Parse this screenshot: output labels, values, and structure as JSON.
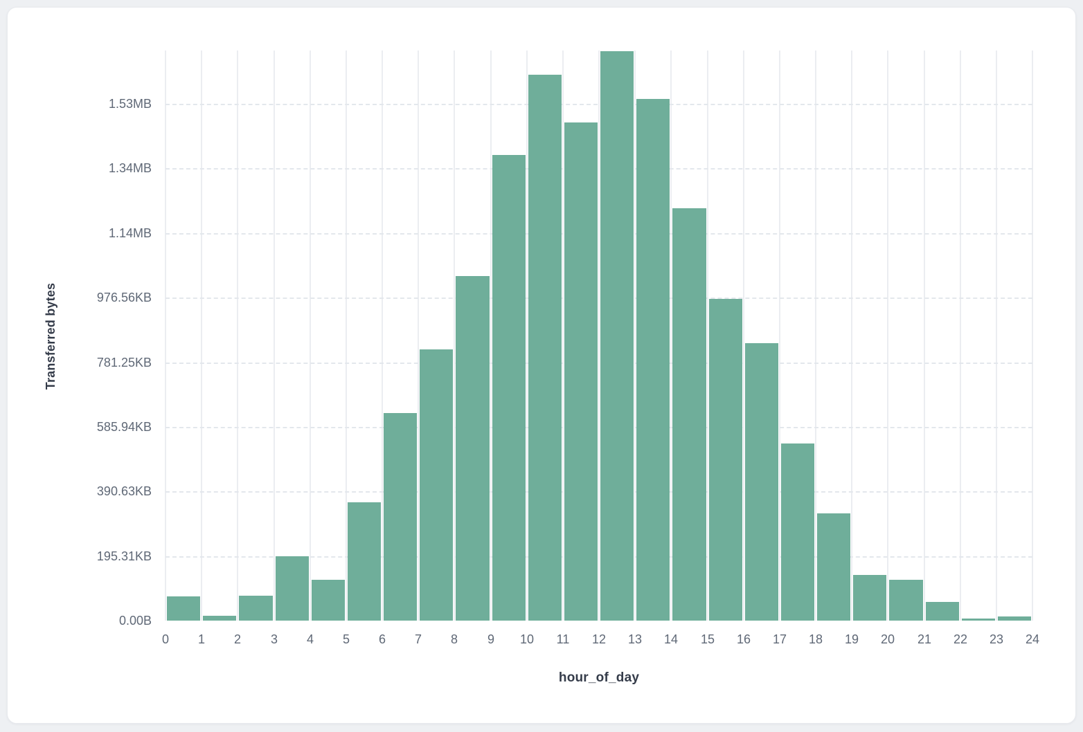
{
  "chart_data": {
    "type": "bar",
    "subtype": "histogram",
    "title": "",
    "xlabel": "hour_of_day",
    "ylabel": "Transferred bytes",
    "categories": [
      0,
      1,
      2,
      3,
      4,
      5,
      6,
      7,
      8,
      9,
      10,
      11,
      12,
      13,
      14,
      15,
      16,
      17,
      18,
      19,
      20,
      21,
      22,
      23
    ],
    "values_bytes": [
      74000,
      16000,
      78000,
      199000,
      126000,
      366000,
      642000,
      839000,
      1067000,
      1442000,
      1690000,
      1542000,
      1763000,
      1615000,
      1277000,
      997000,
      858000,
      548000,
      332000,
      141000,
      126000,
      58000,
      6400,
      12800
    ],
    "ylim": [
      0,
      1765000
    ],
    "y_ticks": [
      {
        "label": "0.00B",
        "bytes": 0
      },
      {
        "label": "195.31KB",
        "bytes": 200000
      },
      {
        "label": "390.63KB",
        "bytes": 400000
      },
      {
        "label": "585.94KB",
        "bytes": 600000
      },
      {
        "label": "781.25KB",
        "bytes": 800000
      },
      {
        "label": "976.56KB",
        "bytes": 1000000
      },
      {
        "label": "1.14MB",
        "bytes": 1200000
      },
      {
        "label": "1.34MB",
        "bytes": 1400000
      },
      {
        "label": "1.53MB",
        "bytes": 1600000
      }
    ],
    "x_ticks": [
      "0",
      "1",
      "2",
      "3",
      "4",
      "5",
      "6",
      "7",
      "8",
      "9",
      "10",
      "11",
      "12",
      "13",
      "14",
      "15",
      "16",
      "17",
      "18",
      "19",
      "20",
      "21",
      "22",
      "23",
      "24"
    ],
    "grid": {
      "vertical": "solid",
      "horizontal": "dashed"
    },
    "legend": "none",
    "colors": {
      "bar": "#6fae9a",
      "grid_vertical": "#ebedf1",
      "grid_horizontal": "#e3e7ec",
      "tick_label": "#5f6876",
      "axis_title": "#353c4a",
      "card_background": "#ffffff",
      "page_background": "#eef0f3"
    }
  }
}
